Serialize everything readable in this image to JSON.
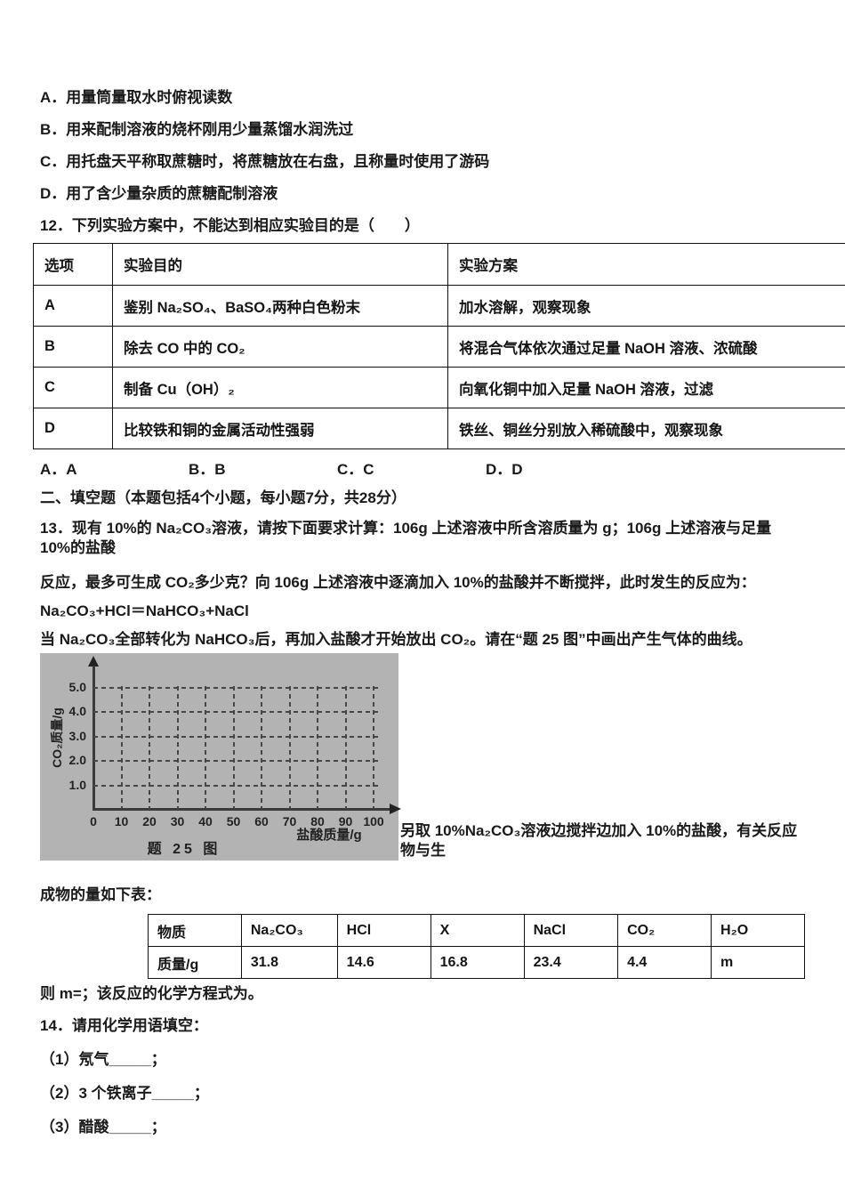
{
  "q11_options": {
    "a": "A．用量筒量取水时俯视读数",
    "b": "B．用来配制溶液的烧杯刚用少量蒸馏水润洗过",
    "c": "C．用托盘天平称取蔗糖时，将蔗糖放在右盘，且称量时使用了游码",
    "d": "D．用了含少量杂质的蔗糖配制溶液"
  },
  "q12": {
    "prompt": "12．下列实验方案中，不能达到相应实验目的是（　　）",
    "table": {
      "headers": [
        "选项",
        "实验目的",
        "实验方案"
      ],
      "rows": [
        [
          "A",
          "鉴别 Na₂SO₄、BaSO₄两种白色粉末",
          "加水溶解，观察现象"
        ],
        [
          "B",
          "除去 CO 中的 CO₂",
          "将混合气体依次通过足量 NaOH 溶液、浓硫酸"
        ],
        [
          "C",
          "制备 Cu（OH）₂",
          "向氧化铜中加入足量 NaOH 溶液，过滤"
        ],
        [
          "D",
          "比较铁和铜的金属活动性强弱",
          "铁丝、铜丝分别放入稀硫酸中，观察现象"
        ]
      ]
    },
    "answers": {
      "a": "A．A",
      "b": "B．B",
      "c": "C．C",
      "d": "D．D"
    }
  },
  "section2_title": "二、填空题（本题包括4个小题，每小题7分，共28分）",
  "q13": {
    "line1": "13．现有 10%的 Na₂CO₃溶液，请按下面要求计算：106g 上述溶液中所含溶质量为 g；106g 上述溶液与足量 10%的盐酸",
    "line2": "反应，最多可生成 CO₂多少克？向 106g 上述溶液中逐滴加入 10%的盐酸并不断搅拌，此时发生的反应为：",
    "equation": "Na₂CO₃+HCl＝NaHCO₃+NaCl",
    "line4": "当 Na₂CO₃全部转化为 NaHCO₃后，再加入盐酸才开始放出 CO₂。请在“题 25 图”中画出产生气体的曲线。",
    "line5": "另取 10%Na₂CO₃溶液边搅拌边加入 10%的盐酸，有关反应物与生",
    "line6": "成物的量如下表：",
    "table": {
      "rows": [
        [
          "物质",
          "Na₂CO₃",
          "HCl",
          "X",
          "NaCl",
          "CO₂",
          "H₂O"
        ],
        [
          "质量/g",
          "31.8",
          "14.6",
          "16.8",
          "23.4",
          "4.4",
          "m"
        ]
      ]
    },
    "line7": "则 m=；该反应的化学方程式为。"
  },
  "q14": {
    "prompt": "14．请用化学用语填空：",
    "items": [
      "（1）氖气_____；",
      "（2）3 个铁离子_____；",
      "（3）醋酸_____；"
    ]
  },
  "chart_data": {
    "type": "line",
    "title": "题 25 图",
    "xlabel": "盐酸质量/g",
    "ylabel": "CO₂质量/g",
    "x_ticks": [
      0,
      10,
      20,
      30,
      40,
      50,
      60,
      70,
      80,
      90,
      100
    ],
    "y_ticks": [
      "1.0",
      "2.0",
      "3.0",
      "4.0",
      "5.0"
    ],
    "xlim": [
      0,
      105
    ],
    "ylim": [
      0,
      5.5
    ],
    "grid": true,
    "legend": false,
    "series": []
  },
  "colors": {
    "figure_bg": "#b3b3b3",
    "grid_line": "#464646",
    "axis": "#3a3a3a",
    "text": "#1a1a1a",
    "table_border": "#101010"
  }
}
